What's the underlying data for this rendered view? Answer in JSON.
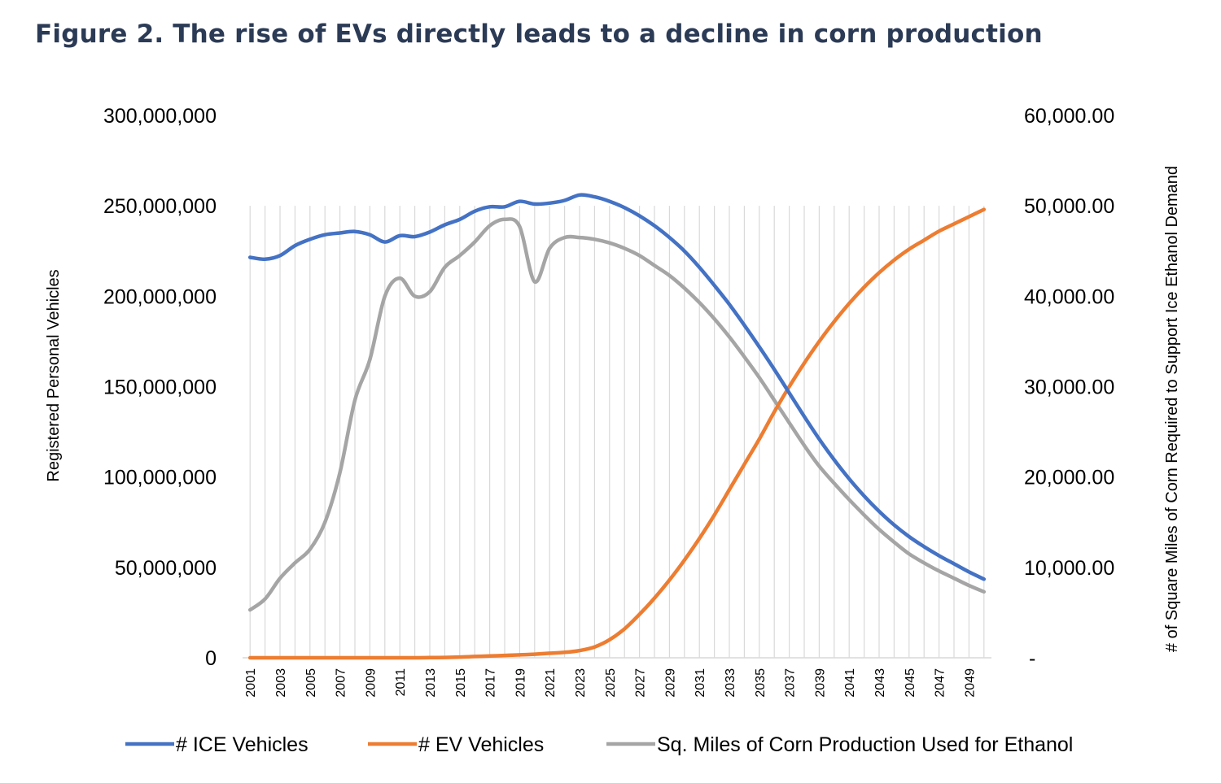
{
  "chart_data": {
    "type": "line",
    "title": "Figure 2. The rise of EVs directly leads to a decline in corn production",
    "ylabel": "Registered Personal Vehicles",
    "y2label": "# of  Square Miles of Corn Required to Support Ice Ethanol Demand",
    "ylim": [
      0,
      300000000
    ],
    "y2lim": [
      0,
      60000
    ],
    "y_ticks": [
      "0",
      "50,000,000",
      "100,000,000",
      "150,000,000",
      "200,000,000",
      "250,000,000",
      "300,000,000"
    ],
    "y2_ticks": [
      "-",
      "10,000.00",
      "20,000.00",
      "30,000.00",
      "40,000.00",
      "50,000.00",
      "60,000.00"
    ],
    "x": [
      2001,
      2002,
      2003,
      2004,
      2005,
      2006,
      2007,
      2008,
      2009,
      2010,
      2011,
      2012,
      2013,
      2014,
      2015,
      2016,
      2017,
      2018,
      2019,
      2020,
      2021,
      2022,
      2023,
      2024,
      2025,
      2026,
      2027,
      2028,
      2029,
      2030,
      2031,
      2032,
      2033,
      2034,
      2035,
      2036,
      2037,
      2038,
      2039,
      2040,
      2041,
      2042,
      2043,
      2044,
      2045,
      2046,
      2047,
      2048,
      2049,
      2050
    ],
    "x_tick_labels": [
      "2001",
      "2003",
      "2005",
      "2007",
      "2009",
      "2011",
      "2013",
      "2015",
      "2017",
      "2019",
      "2021",
      "2023",
      "2025",
      "2027",
      "2029",
      "2031",
      "2033",
      "2035",
      "2037",
      "2039",
      "2041",
      "2043",
      "2045",
      "2047",
      "2049"
    ],
    "grid": "vertical",
    "legend_position": "bottom",
    "series": [
      {
        "name": "# ICE Vehicles",
        "axis": "left",
        "color": "#4472c4",
        "values": [
          221500000,
          220500000,
          222500000,
          228000000,
          231500000,
          234000000,
          235000000,
          235800000,
          234000000,
          230000000,
          233500000,
          233000000,
          235500000,
          239500000,
          242500000,
          247000000,
          249500000,
          249500000,
          252500000,
          251000000,
          251500000,
          253000000,
          256000000,
          255000000,
          252500000,
          249000000,
          244500000,
          239000000,
          232500000,
          225000000,
          216000000,
          206000000,
          195500000,
          184000000,
          172000000,
          159500000,
          146500000,
          133500000,
          121000000,
          109500000,
          99000000,
          89500000,
          81000000,
          73500000,
          67000000,
          61500000,
          56500000,
          52000000,
          47500000,
          43500000
        ]
      },
      {
        "name": "# EV Vehicles",
        "axis": "left",
        "color": "#ed7d31",
        "values": [
          0,
          0,
          0,
          0,
          0,
          0,
          0,
          0,
          0,
          0,
          0,
          0,
          100000,
          200000,
          400000,
          700000,
          1000000,
          1300000,
          1600000,
          2000000,
          2500000,
          3000000,
          4000000,
          6000000,
          10000000,
          16000000,
          24000000,
          33000000,
          43000000,
          54000000,
          66000000,
          79000000,
          93000000,
          107000000,
          121000000,
          136000000,
          150000000,
          163000000,
          175000000,
          186000000,
          196000000,
          205000000,
          213000000,
          220000000,
          226000000,
          231000000,
          236000000,
          240000000,
          244000000,
          248000000
        ]
      },
      {
        "name": "Sq. Miles of Corn Production Used for Ethanol",
        "axis": "right",
        "color": "#a5a5a5",
        "values": [
          5300,
          6500,
          8800,
          10500,
          12000,
          15000,
          20500,
          28500,
          33000,
          40000,
          42000,
          40000,
          40500,
          43200,
          44500,
          46000,
          47800,
          48500,
          47700,
          41600,
          45300,
          46500,
          46500,
          46300,
          45900,
          45300,
          44500,
          43400,
          42300,
          40900,
          39300,
          37500,
          35500,
          33300,
          31000,
          28500,
          26000,
          23500,
          21200,
          19300,
          17500,
          15800,
          14200,
          12800,
          11500,
          10500,
          9600,
          8800,
          8000,
          7300
        ]
      }
    ]
  }
}
